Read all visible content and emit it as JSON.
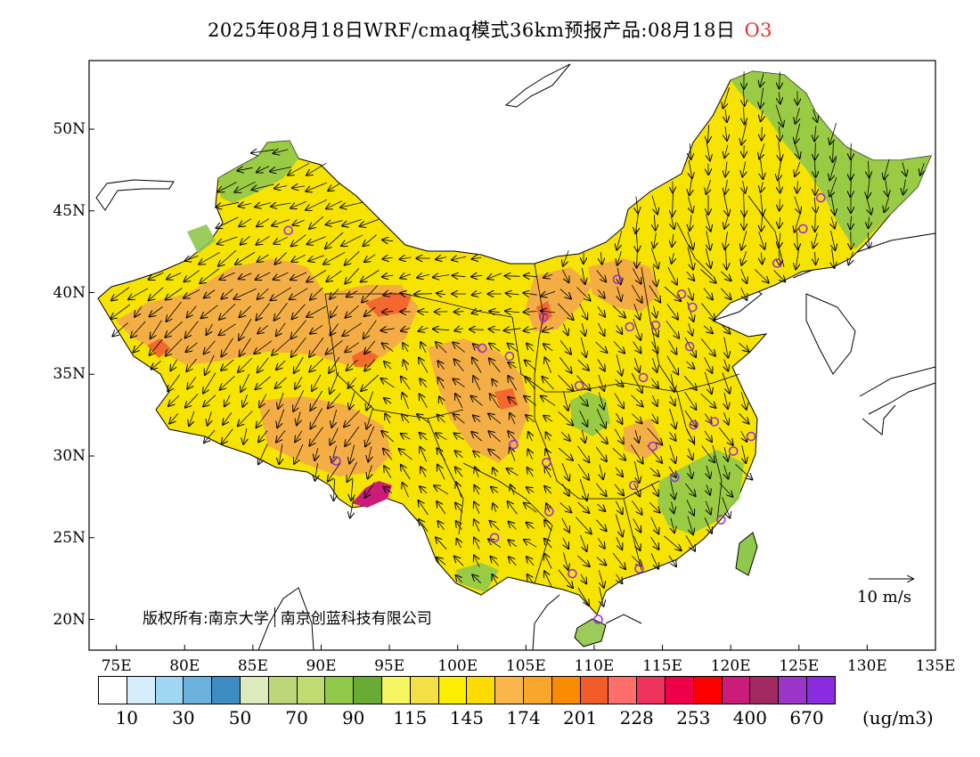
{
  "title": {
    "main": "2025年08月18日WRF/cmaq模式36km预报产品:08月18日",
    "species": "O3"
  },
  "map": {
    "lat_ticks": [
      "50N",
      "45N",
      "40N",
      "35N",
      "30N",
      "25N",
      "20N"
    ],
    "lon_ticks": [
      "75E",
      "80E",
      "85E",
      "90E",
      "95E",
      "100E",
      "105E",
      "110E",
      "115E",
      "120E",
      "125E",
      "130E",
      "135E"
    ],
    "land_color": "#f6e400",
    "high_color": "#f3a84c",
    "low_color": "#8fc84b",
    "vector_color": "#000000",
    "station_color": "#9b30d9"
  },
  "copyright": {
    "part1": "版权所有:南京大学",
    "part2": "南京创蓝科技有限公司"
  },
  "reference_vector": {
    "label": "10 m/s"
  },
  "colorbar": {
    "colors": [
      "#ffffff",
      "#d6eefa",
      "#9fd7f3",
      "#6bb2df",
      "#3f8bc4",
      "#dcebbb",
      "#bcd77a",
      "#c0dc70",
      "#91c94a",
      "#6aab35",
      "#f5f562",
      "#f3e046",
      "#fdee00",
      "#fddc00",
      "#f9b64a",
      "#f7a82a",
      "#fb8b00",
      "#f25c2a",
      "#fe6f6b",
      "#f0335c",
      "#f00048",
      "#ff0000",
      "#cb1c7c",
      "#a32a60",
      "#9a36c8",
      "#8a2be2"
    ],
    "labels": [
      "10",
      "30",
      "50",
      "70",
      "90",
      "115",
      "145",
      "174",
      "201",
      "228",
      "253",
      "400",
      "670"
    ],
    "unit": "(ug/m3)"
  }
}
